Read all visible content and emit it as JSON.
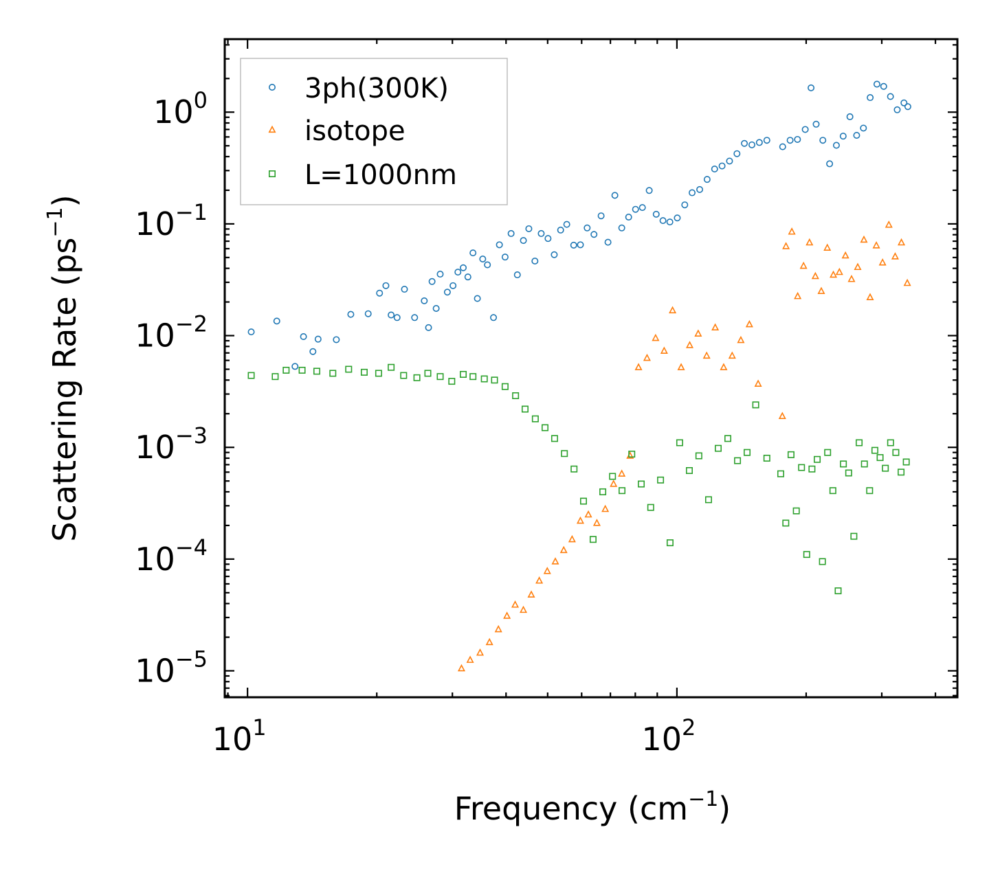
{
  "chart_data": {
    "type": "scatter",
    "title": "",
    "xlabel": {
      "base": "Frequency (cm",
      "sup": "−1",
      "tail": ")"
    },
    "ylabel": {
      "base": "Scattering Rate (ps",
      "sup": "−1",
      "tail": ")"
    },
    "xscale": "log",
    "yscale": "log",
    "xlim": [
      8.85,
      450
    ],
    "ylim": [
      5.8e-06,
      4.5
    ],
    "grid": false,
    "legend_position": "top-left",
    "x_ticks": [
      {
        "value": 10,
        "base": "10",
        "exp": "1"
      },
      {
        "value": 100,
        "base": "10",
        "exp": "2"
      }
    ],
    "y_ticks": [
      {
        "value": 1,
        "base": "10",
        "exp": "0"
      },
      {
        "value": 0.1,
        "base": "10",
        "exp": "−1"
      },
      {
        "value": 0.01,
        "base": "10",
        "exp": "−2"
      },
      {
        "value": 0.001,
        "base": "10",
        "exp": "−3"
      },
      {
        "value": 0.0001,
        "base": "10",
        "exp": "−4"
      },
      {
        "value": 1e-05,
        "base": "10",
        "exp": "−5"
      }
    ],
    "series": [
      {
        "name": "3ph(300K)",
        "marker": "circle",
        "color": "#1f77b4",
        "points": [
          [
            10.2,
            0.0108
          ],
          [
            11.7,
            0.0135
          ],
          [
            12.9,
            0.0053
          ],
          [
            13.5,
            0.0098
          ],
          [
            14.2,
            0.0072
          ],
          [
            14.6,
            0.0093
          ],
          [
            16.1,
            0.0092
          ],
          [
            17.4,
            0.0155
          ],
          [
            19.1,
            0.0157
          ],
          [
            20.3,
            0.024
          ],
          [
            21.0,
            0.028
          ],
          [
            21.6,
            0.0153
          ],
          [
            22.3,
            0.0145
          ],
          [
            23.2,
            0.026
          ],
          [
            24.5,
            0.0145
          ],
          [
            25.8,
            0.0205
          ],
          [
            26.4,
            0.0118
          ],
          [
            26.9,
            0.0305
          ],
          [
            27.5,
            0.0175
          ],
          [
            28.1,
            0.0355
          ],
          [
            29.2,
            0.0245
          ],
          [
            30.1,
            0.028
          ],
          [
            30.9,
            0.037
          ],
          [
            31.8,
            0.0405
          ],
          [
            32.6,
            0.0335
          ],
          [
            33.5,
            0.055
          ],
          [
            34.3,
            0.0215
          ],
          [
            35.3,
            0.0485
          ],
          [
            36.2,
            0.043
          ],
          [
            37.4,
            0.0145
          ],
          [
            38.6,
            0.065
          ],
          [
            39.8,
            0.0505
          ],
          [
            41.1,
            0.082
          ],
          [
            42.5,
            0.035
          ],
          [
            43.9,
            0.071
          ],
          [
            45.2,
            0.0905
          ],
          [
            46.7,
            0.0465
          ],
          [
            48.3,
            0.082
          ],
          [
            50.1,
            0.074
          ],
          [
            51.8,
            0.053
          ],
          [
            53.6,
            0.088
          ],
          [
            55.4,
            0.099
          ],
          [
            57.5,
            0.0645
          ],
          [
            59.6,
            0.065
          ],
          [
            61.8,
            0.092
          ],
          [
            64.1,
            0.0805
          ],
          [
            66.6,
            0.118
          ],
          [
            69.1,
            0.0685
          ],
          [
            71.7,
            0.18
          ],
          [
            74.4,
            0.092
          ],
          [
            77.2,
            0.115
          ],
          [
            80.1,
            0.135
          ],
          [
            83.1,
            0.14
          ],
          [
            86.2,
            0.199
          ],
          [
            89.5,
            0.122
          ],
          [
            92.8,
            0.107
          ],
          [
            96.3,
            0.104
          ],
          [
            100.2,
            0.113
          ],
          [
            104.3,
            0.148
          ],
          [
            108.5,
            0.19
          ],
          [
            113.0,
            0.203
          ],
          [
            117.6,
            0.25
          ],
          [
            122.4,
            0.31
          ],
          [
            127.4,
            0.33
          ],
          [
            132.6,
            0.365
          ],
          [
            138.0,
            0.425
          ],
          [
            143.6,
            0.525
          ],
          [
            149.5,
            0.51
          ],
          [
            155.6,
            0.535
          ],
          [
            162.0,
            0.56
          ],
          [
            176.3,
            0.49
          ],
          [
            183.5,
            0.56
          ],
          [
            190.9,
            0.57
          ],
          [
            199.0,
            0.7
          ],
          [
            205.3,
            1.65
          ],
          [
            211.0,
            0.78
          ],
          [
            218.7,
            0.56
          ],
          [
            226.8,
            0.345
          ],
          [
            235.2,
            0.505
          ],
          [
            243.9,
            0.61
          ],
          [
            252.9,
            0.91
          ],
          [
            262.2,
            0.62
          ],
          [
            271.9,
            0.72
          ],
          [
            281.9,
            1.35
          ],
          [
            292.3,
            1.78
          ],
          [
            303.1,
            1.7
          ],
          [
            314.3,
            1.38
          ],
          [
            325.9,
            1.05
          ],
          [
            337.9,
            1.21
          ],
          [
            345.0,
            1.12
          ]
        ]
      },
      {
        "name": "isotope",
        "marker": "triangle",
        "color": "#ff7f0e",
        "points": [
          [
            31.5,
            1.05e-05
          ],
          [
            33.0,
            1.25e-05
          ],
          [
            34.8,
            1.45e-05
          ],
          [
            36.6,
            1.8e-05
          ],
          [
            38.4,
            2.35e-05
          ],
          [
            40.2,
            3.1e-05
          ],
          [
            42.0,
            3.9e-05
          ],
          [
            43.9,
            3.5e-05
          ],
          [
            45.8,
            4.8e-05
          ],
          [
            47.8,
            6.4e-05
          ],
          [
            49.9,
            7.8e-05
          ],
          [
            52.1,
            9.5e-05
          ],
          [
            54.5,
            0.00012
          ],
          [
            57.0,
            0.00015
          ],
          [
            59.6,
            0.00022
          ],
          [
            62.2,
            0.00025
          ],
          [
            65.1,
            0.00021
          ],
          [
            68.1,
            0.00028
          ],
          [
            71.2,
            0.00047
          ],
          [
            74.4,
            0.00058
          ],
          [
            77.8,
            0.00084
          ],
          [
            81.4,
            0.0052
          ],
          [
            85.2,
            0.0063
          ],
          [
            89.2,
            0.0095
          ],
          [
            93.4,
            0.0073
          ],
          [
            97.7,
            0.0168
          ],
          [
            102.3,
            0.0052
          ],
          [
            107.1,
            0.0082
          ],
          [
            112.1,
            0.0104
          ],
          [
            117.3,
            0.0066
          ],
          [
            122.8,
            0.0118
          ],
          [
            128.5,
            0.0052
          ],
          [
            134.5,
            0.0066
          ],
          [
            140.9,
            0.0091
          ],
          [
            147.5,
            0.0126
          ],
          [
            154.6,
            0.0037
          ],
          [
            176.0,
            0.0019
          ],
          [
            179.5,
            0.063
          ],
          [
            185.2,
            0.085
          ],
          [
            191.1,
            0.0225
          ],
          [
            197.2,
            0.042
          ],
          [
            203.6,
            0.068
          ],
          [
            210.1,
            0.034
          ],
          [
            216.9,
            0.025
          ],
          [
            224.0,
            0.061
          ],
          [
            231.4,
            0.035
          ],
          [
            239.0,
            0.037
          ],
          [
            246.9,
            0.052
          ],
          [
            255.1,
            0.032
          ],
          [
            263.7,
            0.041
          ],
          [
            272.6,
            0.072
          ],
          [
            281.8,
            0.022
          ],
          [
            291.4,
            0.064
          ],
          [
            301.3,
            0.045
          ],
          [
            311.6,
            0.098
          ],
          [
            322.3,
            0.051
          ],
          [
            333.3,
            0.068
          ],
          [
            344.0,
            0.0295
          ]
        ]
      },
      {
        "name": "L=1000nm",
        "marker": "square",
        "color": "#2ca02c",
        "points": [
          [
            10.2,
            0.0044
          ],
          [
            11.6,
            0.0043
          ],
          [
            12.3,
            0.0049
          ],
          [
            13.4,
            0.0049
          ],
          [
            14.5,
            0.0048
          ],
          [
            15.8,
            0.0046
          ],
          [
            17.2,
            0.005
          ],
          [
            18.7,
            0.0047
          ],
          [
            20.2,
            0.0046
          ],
          [
            21.6,
            0.0052
          ],
          [
            23.1,
            0.0044
          ],
          [
            24.8,
            0.0042
          ],
          [
            26.3,
            0.0046
          ],
          [
            28.1,
            0.0043
          ],
          [
            29.9,
            0.0039
          ],
          [
            31.8,
            0.0045
          ],
          [
            33.5,
            0.0043
          ],
          [
            35.6,
            0.0041
          ],
          [
            37.6,
            0.004
          ],
          [
            39.8,
            0.0035
          ],
          [
            42.1,
            0.0029
          ],
          [
            44.3,
            0.0022
          ],
          [
            46.8,
            0.0018
          ],
          [
            49.3,
            0.0015
          ],
          [
            51.9,
            0.0012
          ],
          [
            54.7,
            0.00088
          ],
          [
            57.6,
            0.00064
          ],
          [
            60.6,
            0.00033
          ],
          [
            63.8,
            0.00015
          ],
          [
            67.2,
            0.0004
          ],
          [
            70.8,
            0.00055
          ],
          [
            74.5,
            0.00041
          ],
          [
            78.5,
            0.00087
          ],
          [
            82.6,
            0.00047
          ],
          [
            86.9,
            0.00029
          ],
          [
            91.6,
            0.00051
          ],
          [
            96.4,
            0.00014
          ],
          [
            101.5,
            0.0011
          ],
          [
            106.9,
            0.00062
          ],
          [
            112.5,
            0.00084
          ],
          [
            118.5,
            0.00034
          ],
          [
            124.8,
            0.00098
          ],
          [
            131.4,
            0.0012
          ],
          [
            138.4,
            0.00076
          ],
          [
            145.7,
            0.0009
          ],
          [
            152.6,
            0.0024
          ],
          [
            162.0,
            0.0008
          ],
          [
            174.5,
            0.00058
          ],
          [
            179.3,
            0.00021
          ],
          [
            184.4,
            0.00086
          ],
          [
            189.7,
            0.00027
          ],
          [
            195.1,
            0.00066
          ],
          [
            200.6,
            0.00011
          ],
          [
            206.3,
            0.00064
          ],
          [
            212.2,
            0.00078
          ],
          [
            218.2,
            9.5e-05
          ],
          [
            224.4,
            0.0009
          ],
          [
            230.8,
            0.00041
          ],
          [
            237.4,
            5.2e-05
          ],
          [
            244.2,
            0.00071
          ],
          [
            251.2,
            0.00059
          ],
          [
            258.3,
            0.00016
          ],
          [
            265.7,
            0.0011
          ],
          [
            273.3,
            0.00071
          ],
          [
            281.1,
            0.00041
          ],
          [
            289.1,
            0.00094
          ],
          [
            297.3,
            0.00081
          ],
          [
            305.8,
            0.00065
          ],
          [
            314.5,
            0.0011
          ],
          [
            323.5,
            0.0009
          ],
          [
            332.7,
            0.0006
          ],
          [
            342.1,
            0.00074
          ]
        ]
      }
    ]
  }
}
